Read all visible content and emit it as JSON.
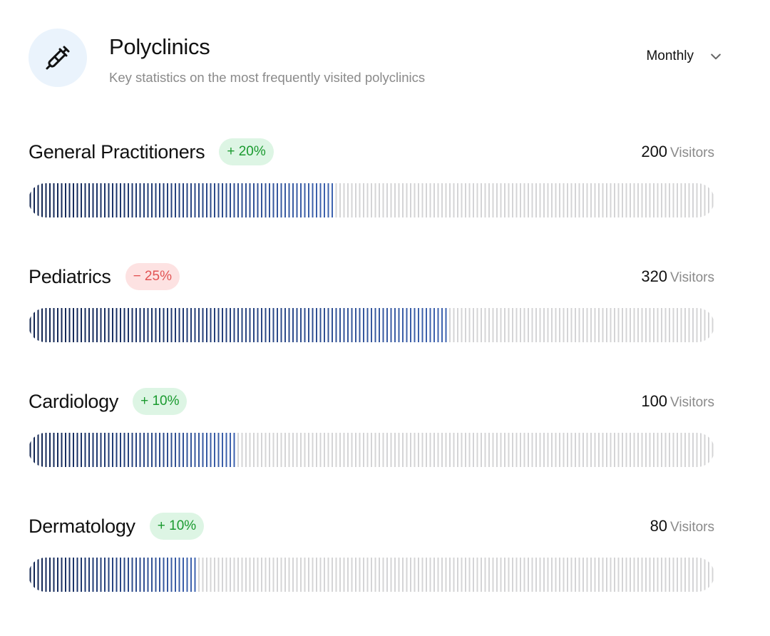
{
  "header": {
    "icon": "syringe-icon",
    "title": "Polyclinics",
    "subtitle": "Key statistics on the most frequently visited polyclinics",
    "period": "Monthly"
  },
  "colors": {
    "fill_dark": "#10234f",
    "fill_light": "#3e63b0",
    "track": "#d4d4d6",
    "up_bg": "#ddf5e4",
    "up_text": "#1a9a2f",
    "down_bg": "#fde2e2",
    "down_text": "#e25454"
  },
  "rows": [
    {
      "name": "General Practitioners",
      "change": "+ 20%",
      "trend": "up",
      "count": "200",
      "unit": "Visitors",
      "fill": 0.443
    },
    {
      "name": "Pediatrics",
      "change": "− 25%",
      "trend": "down",
      "count": "320",
      "unit": "Visitors",
      "fill": 0.61
    },
    {
      "name": "Cardiology",
      "change": "+ 10%",
      "trend": "up",
      "count": "100",
      "unit": "Visitors",
      "fill": 0.303
    },
    {
      "name": "Dermatology",
      "change": "+ 10%",
      "trend": "up",
      "count": "80",
      "unit": "Visitors",
      "fill": 0.243
    }
  ]
}
